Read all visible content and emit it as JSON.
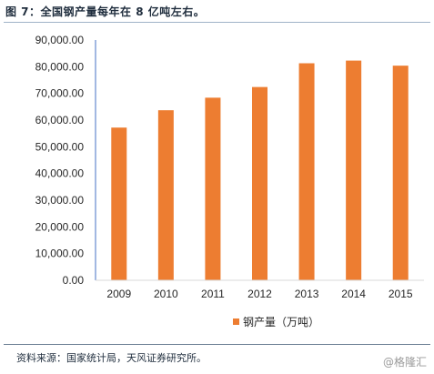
{
  "header": {
    "title": "图 7：全国钢产量每年在 8 亿吨左右。"
  },
  "footer": {
    "source": "资料来源：国家统计局，天风证券研究所。",
    "watermark": "@格隆汇"
  },
  "colors": {
    "bar": "#ed7d31",
    "axis": "#4472c4",
    "text": "#262626"
  },
  "chart_data": {
    "type": "bar",
    "categories": [
      "2009",
      "2010",
      "2011",
      "2012",
      "2013",
      "2014",
      "2015"
    ],
    "series": [
      {
        "name": "钢产量（万吨）",
        "values": [
          57200,
          63700,
          68400,
          72400,
          81300,
          82300,
          80400
        ]
      }
    ],
    "yticks": [
      "0.00",
      "10,000.00",
      "20,000.00",
      "30,000.00",
      "40,000.00",
      "50,000.00",
      "60,000.00",
      "70,000.00",
      "80,000.00",
      "90,000.00"
    ],
    "ylim": [
      0,
      90000
    ],
    "grid": false,
    "legend": "bottom"
  }
}
